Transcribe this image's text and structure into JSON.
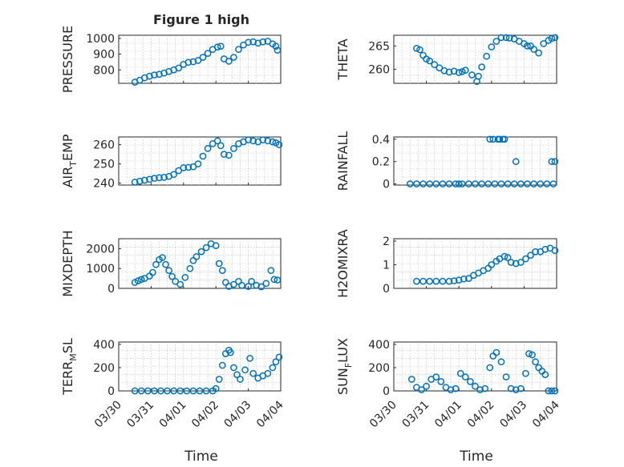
{
  "figure": {
    "title": "Figure 1 high",
    "xlabel": "Time",
    "xticklabels": [
      "03/30",
      "03/31",
      "04/01",
      "04/02",
      "04/03",
      "04/04"
    ],
    "color": "#0072bd"
  },
  "chart_data": [
    {
      "type": "scatter",
      "ylabel": "PRESSURE",
      "xlim": [
        0,
        5
      ],
      "ylim": [
        715,
        1020
      ],
      "yticks": [
        800,
        900,
        1000
      ],
      "x": [
        0.5,
        0.65,
        0.8,
        0.95,
        1.1,
        1.25,
        1.4,
        1.55,
        1.7,
        1.85,
        2.0,
        2.15,
        2.3,
        2.45,
        2.6,
        2.75,
        2.9,
        3.05,
        3.15,
        3.25,
        3.4,
        3.55,
        3.7,
        3.85,
        4.0,
        4.15,
        4.3,
        4.45,
        4.6,
        4.75,
        4.85,
        4.9
      ],
      "y": [
        722,
        735,
        750,
        760,
        768,
        772,
        780,
        790,
        800,
        812,
        835,
        848,
        852,
        860,
        880,
        905,
        930,
        945,
        950,
        870,
        855,
        880,
        930,
        958,
        975,
        978,
        970,
        978,
        982,
        965,
        950,
        925
      ]
    },
    {
      "type": "scatter",
      "ylabel": "THETA",
      "xlim": [
        0,
        5
      ],
      "ylim": [
        257,
        267.3
      ],
      "yticks": [
        260,
        265
      ],
      "x": [
        0.7,
        0.8,
        0.9,
        1.0,
        1.1,
        1.25,
        1.4,
        1.55,
        1.7,
        1.85,
        2.0,
        2.1,
        2.2,
        2.4,
        2.55,
        2.6,
        2.7,
        2.85,
        3.0,
        3.15,
        3.3,
        3.45,
        3.55,
        3.7,
        3.85,
        4.0,
        4.1,
        4.2,
        4.3,
        4.45,
        4.6,
        4.75,
        4.85,
        4.95
      ],
      "y": [
        264.5,
        264.2,
        263.0,
        262.2,
        261.8,
        261.0,
        260.3,
        259.7,
        259.4,
        259.6,
        259.3,
        259.5,
        259.8,
        258.8,
        257.4,
        258.5,
        260.5,
        262.8,
        264.8,
        266.0,
        266.8,
        266.8,
        266.7,
        266.5,
        266.0,
        265.5,
        265.0,
        265.0,
        264.3,
        263.5,
        265.5,
        266.2,
        266.6,
        266.8
      ]
    },
    {
      "type": "scatter",
      "ylabel": "AIR_TEMP",
      "ylabel_main": "AIR",
      "ylabel_sub": "T",
      "ylabel_tail": "EMP",
      "xlim": [
        0,
        5
      ],
      "ylim": [
        239,
        264
      ],
      "yticks": [
        240,
        250,
        260
      ],
      "x": [
        0.5,
        0.65,
        0.8,
        0.95,
        1.1,
        1.25,
        1.4,
        1.55,
        1.7,
        1.85,
        2.0,
        2.15,
        2.3,
        2.45,
        2.6,
        2.75,
        2.9,
        3.05,
        3.15,
        3.25,
        3.4,
        3.55,
        3.7,
        3.85,
        4.0,
        4.15,
        4.3,
        4.45,
        4.6,
        4.75,
        4.85,
        4.95
      ],
      "y": [
        240.5,
        241.0,
        241.5,
        242.0,
        242.5,
        242.8,
        243.0,
        243.5,
        244.5,
        246.5,
        248.0,
        248.2,
        248.5,
        250.0,
        254.0,
        258.0,
        260.5,
        262.0,
        259.5,
        255.0,
        254.5,
        258.0,
        260.5,
        261.5,
        262.5,
        262.0,
        261.5,
        262.5,
        262.0,
        261.5,
        261.0,
        260.0
      ]
    },
    {
      "type": "scatter",
      "ylabel": "RAINFALL",
      "xlim": [
        0,
        5
      ],
      "ylim": [
        -0.01,
        0.42
      ],
      "yticks": [
        0,
        0.2,
        0.4
      ],
      "x": [
        0.5,
        0.7,
        0.9,
        1.1,
        1.3,
        1.5,
        1.7,
        1.9,
        2.0,
        2.1,
        2.3,
        2.5,
        2.7,
        2.9,
        3.1,
        3.3,
        3.5,
        3.7,
        3.9,
        4.1,
        4.3,
        4.5,
        4.7,
        4.9,
        2.95,
        3.05,
        3.2,
        3.25,
        3.35,
        3.4,
        3.75,
        4.85,
        4.95
      ],
      "y": [
        0,
        0,
        0,
        0,
        0,
        0,
        0,
        0,
        0,
        0,
        0,
        0,
        0,
        0,
        0,
        0,
        0,
        0,
        0,
        0,
        0,
        0,
        0,
        0,
        0.4,
        0.4,
        0.4,
        0.4,
        0.4,
        0.4,
        0.2,
        0.2,
        0.2
      ]
    },
    {
      "type": "scatter",
      "ylabel": "MIXDEPTH",
      "xlim": [
        0,
        5
      ],
      "ylim": [
        0,
        2500
      ],
      "yticks": [
        0,
        1000,
        2000
      ],
      "x": [
        0.5,
        0.6,
        0.7,
        0.8,
        0.95,
        1.05,
        1.15,
        1.25,
        1.35,
        1.45,
        1.55,
        1.65,
        1.75,
        1.9,
        2.05,
        2.2,
        2.3,
        2.4,
        2.55,
        2.7,
        2.85,
        3.0,
        3.1,
        3.2,
        3.3,
        3.4,
        3.55,
        3.7,
        3.8,
        4.0,
        4.1,
        4.25,
        4.4,
        4.55,
        4.7,
        4.8,
        4.9
      ],
      "y": [
        300,
        380,
        450,
        500,
        620,
        800,
        1200,
        1450,
        1550,
        1200,
        900,
        600,
        350,
        200,
        550,
        1000,
        1400,
        1600,
        1850,
        2050,
        2250,
        2150,
        1250,
        900,
        300,
        100,
        200,
        350,
        150,
        100,
        350,
        150,
        80,
        250,
        900,
        450,
        420
      ]
    },
    {
      "type": "scatter",
      "ylabel": "H2OMIXRA",
      "xlim": [
        0,
        5
      ],
      "ylim": [
        0,
        2.1
      ],
      "yticks": [
        0,
        1,
        2
      ],
      "x": [
        0.7,
        0.9,
        1.1,
        1.3,
        1.5,
        1.7,
        1.85,
        2.0,
        2.15,
        2.3,
        2.45,
        2.6,
        2.75,
        2.9,
        3.0,
        3.15,
        3.25,
        3.4,
        3.5,
        3.6,
        3.75,
        3.9,
        4.05,
        4.2,
        4.35,
        4.5,
        4.65,
        4.8,
        4.95
      ],
      "y": [
        0.3,
        0.3,
        0.3,
        0.3,
        0.3,
        0.3,
        0.32,
        0.35,
        0.4,
        0.42,
        0.55,
        0.65,
        0.75,
        0.85,
        1.0,
        1.15,
        1.25,
        1.35,
        1.3,
        1.1,
        1.05,
        1.1,
        1.25,
        1.4,
        1.55,
        1.55,
        1.65,
        1.7,
        1.6
      ]
    },
    {
      "type": "scatter",
      "ylabel": "TERR_MSL",
      "ylabel_main": "TERR",
      "ylabel_sub": "M",
      "ylabel_tail": "SL",
      "xlim": [
        0,
        5
      ],
      "ylim": [
        0,
        420
      ],
      "yticks": [
        0,
        200,
        400
      ],
      "x": [
        0.5,
        0.7,
        0.9,
        1.1,
        1.3,
        1.5,
        1.7,
        1.9,
        2.1,
        2.3,
        2.5,
        2.7,
        2.9,
        3.0,
        3.1,
        3.2,
        3.3,
        3.4,
        3.45,
        3.55,
        3.65,
        3.75,
        3.9,
        4.05,
        4.15,
        4.3,
        4.45,
        4.6,
        4.75,
        4.85,
        4.95
      ],
      "y": [
        0,
        0,
        0,
        0,
        0,
        0,
        0,
        0,
        0,
        0,
        0,
        0,
        0,
        20,
        100,
        220,
        320,
        350,
        330,
        200,
        140,
        100,
        180,
        280,
        150,
        110,
        130,
        150,
        200,
        250,
        290
      ]
    },
    {
      "type": "scatter",
      "ylabel": "SUN_FLUX",
      "ylabel_main": "SUN",
      "ylabel_sub": "F",
      "ylabel_tail": "LUX",
      "xlim": [
        0,
        5
      ],
      "ylim": [
        0,
        420
      ],
      "yticks": [
        0,
        200,
        400
      ],
      "x": [
        0.55,
        0.7,
        0.85,
        1.0,
        1.15,
        1.3,
        1.45,
        1.6,
        1.75,
        1.9,
        2.05,
        2.2,
        2.35,
        2.5,
        2.65,
        2.8,
        2.95,
        3.05,
        3.15,
        3.3,
        3.45,
        3.6,
        3.75,
        3.9,
        4.05,
        4.15,
        4.25,
        4.35,
        4.45,
        4.55,
        4.65,
        4.75,
        4.85,
        4.95
      ],
      "y": [
        100,
        30,
        10,
        40,
        100,
        120,
        80,
        30,
        10,
        20,
        150,
        120,
        80,
        40,
        10,
        20,
        200,
        300,
        330,
        250,
        120,
        20,
        10,
        20,
        150,
        320,
        310,
        250,
        200,
        170,
        140,
        0,
        0,
        0
      ]
    }
  ]
}
